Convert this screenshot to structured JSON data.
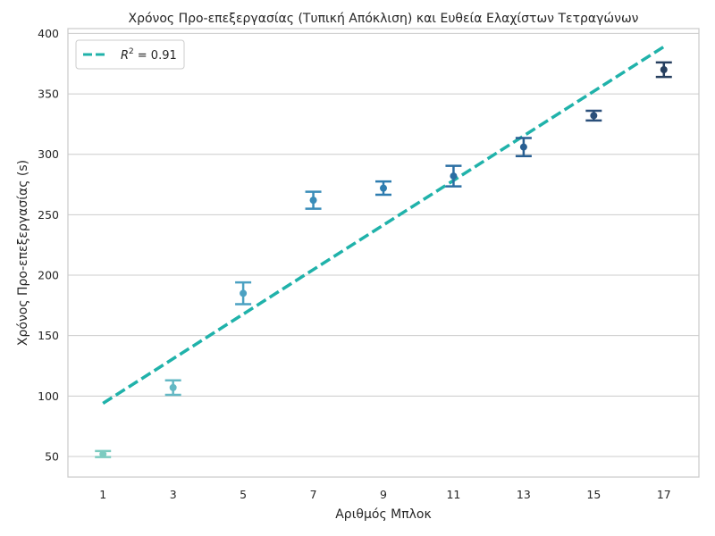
{
  "chart_data": {
    "type": "scatter",
    "title": "Χρόνος Προ-επεξεργασίας (Τυπική Απόκλιση) και Ευθεία Ελαχίστων Τετραγώνων",
    "xlabel": "Αριθμός Μπλοκ",
    "ylabel": "Χρόνος Προ-επεξεργασίας (s)",
    "x_ticks": [
      "1",
      "3",
      "5",
      "7",
      "9",
      "11",
      "13",
      "15",
      "17"
    ],
    "y_ticks": [
      "50",
      "100",
      "150",
      "200",
      "250",
      "300",
      "350",
      "400"
    ],
    "xlim": [
      0,
      18
    ],
    "ylim": [
      33,
      404
    ],
    "grid": "y",
    "legend_position": "top-left",
    "series": [
      {
        "name": "",
        "x": [
          1,
          3,
          5,
          7,
          9,
          11,
          13,
          15,
          17
        ],
        "y": [
          52,
          107,
          185,
          262,
          272,
          282,
          306,
          332,
          370
        ],
        "err": [
          2.5,
          6,
          9,
          7,
          5.5,
          8.5,
          7.5,
          4,
          6
        ],
        "colors": [
          "#7ccbc0",
          "#63b8c4",
          "#4ba1c2",
          "#3a8db9",
          "#2e7db0",
          "#2a6ea3",
          "#285f92",
          "#2a4f7a",
          "#263f5f"
        ]
      }
    ],
    "fit_line": {
      "name": "R^2 = 0.91",
      "x": [
        1,
        17
      ],
      "y": [
        94,
        389
      ],
      "color": "#20b2aa"
    },
    "legend": {
      "r_symbol": "R",
      "r_exponent": "2",
      "r_value": "= 0.91"
    }
  }
}
